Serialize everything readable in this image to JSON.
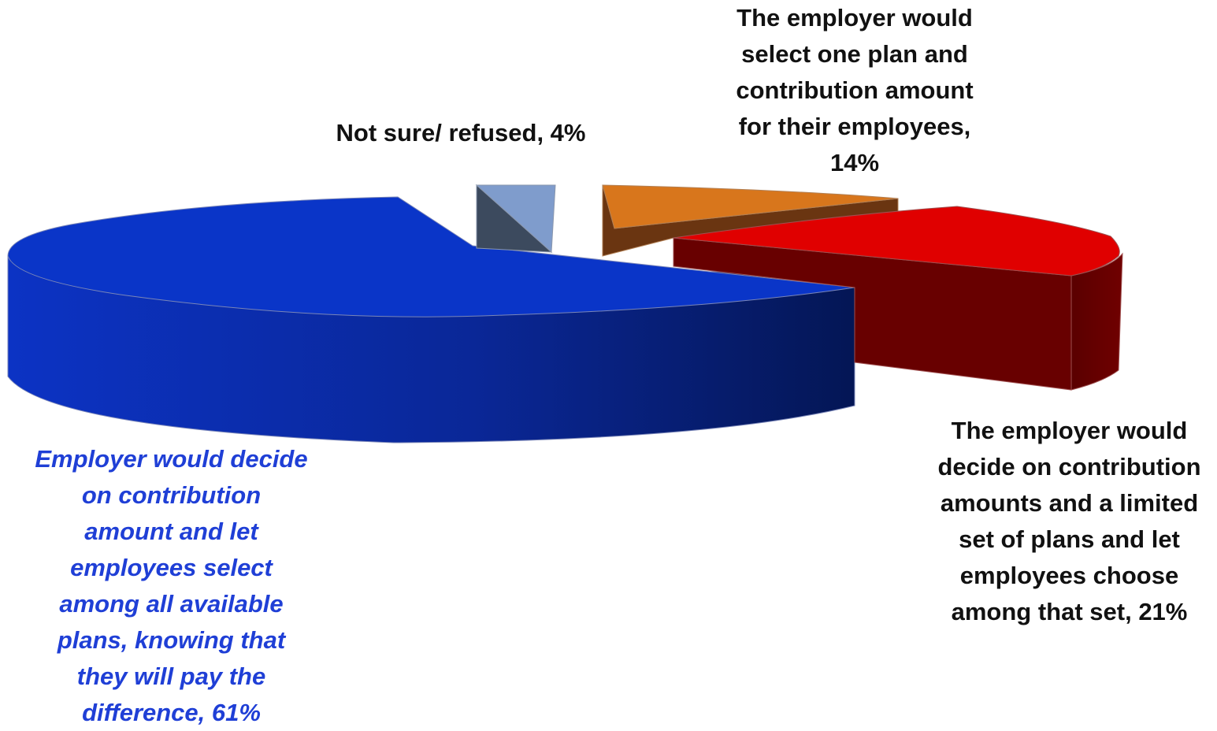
{
  "chart_data": {
    "type": "pie",
    "style": "3d-exploded",
    "title": "",
    "slices": [
      {
        "key": "employer_all_plans",
        "value": 61,
        "label_lines": [
          "Employer would decide",
          "on contribution",
          "amount and let",
          "employees select",
          "among all available",
          "plans, knowing that",
          "they will pay the",
          "difference, 61%"
        ],
        "top_color": "#0a35c8",
        "side_color": "#0b2a9e",
        "label_color": "#1f3fd6"
      },
      {
        "key": "not_sure",
        "value": 4,
        "label_lines": [
          "Not sure/ refused, 4%"
        ],
        "top_color": "#7f9ccc",
        "side_color": "#3c4a5e",
        "label_color": "#111111"
      },
      {
        "key": "employer_one_plan",
        "value": 14,
        "label_lines": [
          "The employer would",
          "select one plan and",
          "contribution amount",
          "for their employees,",
          "14%"
        ],
        "top_color": "#d8761c",
        "side_color": "#6a3511",
        "label_color": "#111111"
      },
      {
        "key": "employer_limited_set",
        "value": 21,
        "label_lines": [
          "The employer would",
          "decide on contribution",
          "amounts and a limited",
          "set of plans and let",
          "employees choose",
          "among that set, 21%"
        ],
        "top_color": "#e00000",
        "side_color": "#680000",
        "label_color": "#111111"
      }
    ]
  }
}
